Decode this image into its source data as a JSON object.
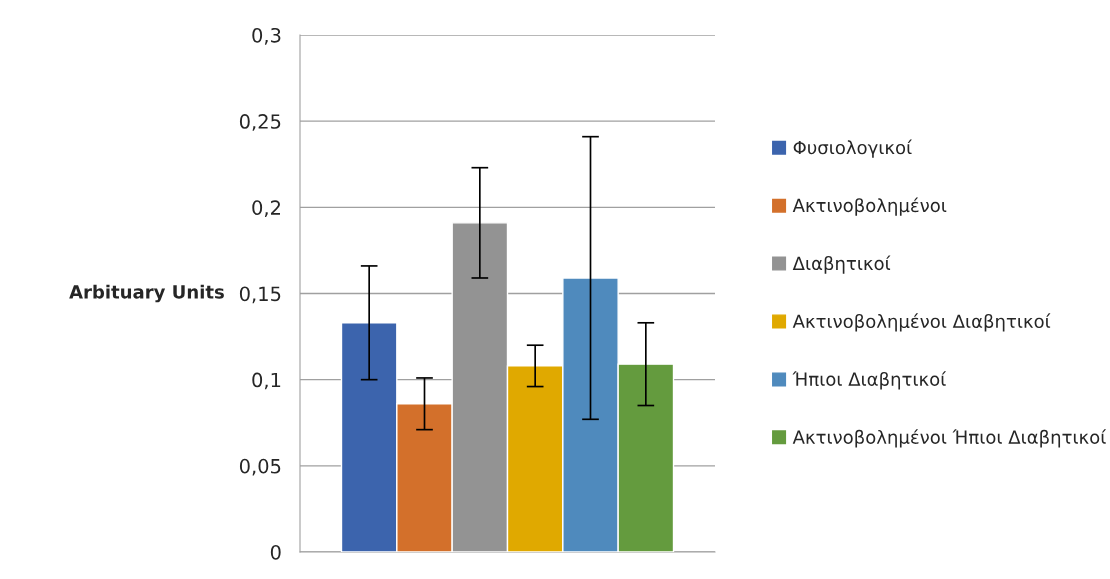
{
  "chart_data": {
    "type": "bar",
    "ylabel": "Arbituary Units",
    "categories": [
      null
    ],
    "series": [
      {
        "name": "Φυσιολογικοί",
        "color": "#3c64ad",
        "values": [
          0.133
        ],
        "errors": [
          0.033
        ]
      },
      {
        "name": "Ακτινοβολημένοι",
        "color": "#d3702b",
        "values": [
          0.086
        ],
        "errors": [
          0.015
        ]
      },
      {
        "name": "Διαβητικοί",
        "color": "#939393",
        "values": [
          0.191
        ],
        "errors": [
          0.032
        ]
      },
      {
        "name": "Ακτινοβολημένοι Διαβητικοί",
        "color": "#e0a900",
        "values": [
          0.108
        ],
        "errors": [
          0.012
        ]
      },
      {
        "name": "Ήπιοι Διαβητικοί",
        "color": "#4f8abd",
        "values": [
          0.159
        ],
        "errors": [
          0.082
        ]
      },
      {
        "name": "Ακτινοβολημένοι Ήπιοι Διαβητικοί",
        "color": "#649b3e",
        "values": [
          0.109
        ],
        "errors": [
          0.024
        ]
      }
    ],
    "ylim": [
      0,
      0.3
    ],
    "yticks": [
      0,
      {
        "value": 0.05,
        "label": "0,05"
      },
      {
        "value": 0.1,
        "label": "0,1"
      },
      {
        "value": 0.15,
        "label": "0,15"
      },
      {
        "value": 0.2,
        "label": "0,2"
      },
      {
        "value": 0.25,
        "label": "0,25"
      },
      {
        "value": 0.3,
        "label": "0,3"
      }
    ],
    "grid": "y",
    "legend": "right"
  }
}
